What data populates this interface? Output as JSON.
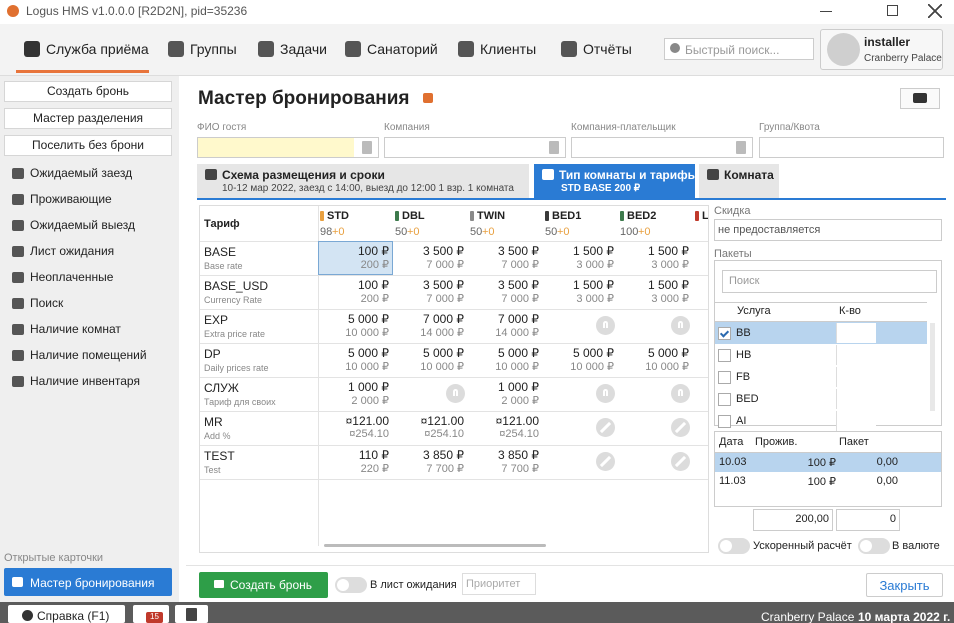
{
  "window": {
    "title": "Logus HMS v1.0.0.0 [R2D2N], pid=35236"
  },
  "nav": {
    "items": [
      "Служба приёма",
      "Группы",
      "Задачи",
      "Санаторий",
      "Клиенты",
      "Отчёты"
    ],
    "active": 0,
    "search_placeholder": "Быстрый поиск...",
    "user": "installer",
    "hotel": "Cranberry Palace"
  },
  "sidebar": {
    "buttons": [
      "Создать бронь",
      "Мастер разделения",
      "Поселить без брони"
    ],
    "links": [
      "Ожидаемый заезд",
      "Проживающие",
      "Ожидаемый выезд",
      "Лист ожидания",
      "Неоплаченные",
      "Поиск",
      "Наличие комнат",
      "Наличие помещений",
      "Наличие инвентаря"
    ],
    "open_cards_label": "Открытые карточки",
    "open_cards": [
      "Мастер бронирования"
    ]
  },
  "main": {
    "title": "Мастер бронирования",
    "fields": [
      "ФИО гостя",
      "Компания",
      "Компания-плательщик",
      "Группа/Квота"
    ],
    "tabs": [
      {
        "title": "Схема размещения и сроки",
        "subtitle": "10-12 мар 2022, заезд с 14:00, выезд до 12:00 1 взр. 1 комната"
      },
      {
        "title": "Тип комнаты и тарифы",
        "subtitle": "STD BASE  200 ₽"
      },
      {
        "title": "Комната"
      }
    ],
    "active_tab": 1,
    "rates": {
      "header": "Тариф",
      "selected": [
        0,
        0
      ],
      "columns": [
        {
          "name": "STD",
          "free": "98",
          "delta": "+0",
          "color": "#e8a040"
        },
        {
          "name": "DBL",
          "free": "50",
          "delta": "+0",
          "color": "#3d7a4c"
        },
        {
          "name": "TWIN",
          "free": "50",
          "delta": "+0",
          "color": "#8a8a8a"
        },
        {
          "name": "BED1",
          "free": "50",
          "delta": "+0",
          "color": "#3a3a3a"
        },
        {
          "name": "BED2",
          "free": "100",
          "delta": "+0",
          "color": "#3d7a4c"
        },
        {
          "name": "L",
          "color": "#c0392b"
        }
      ],
      "rows": [
        {
          "name": "BASE",
          "sub": "Base rate",
          "cells": [
            {
              "price": "100 ₽",
              "total": "200 ₽"
            },
            {
              "price": "3 500 ₽",
              "total": "7 000 ₽"
            },
            {
              "price": "3 500 ₽",
              "total": "7 000 ₽"
            },
            {
              "price": "1 500 ₽",
              "total": "3 000 ₽"
            },
            {
              "price": "1 500 ₽",
              "total": "3 000 ₽"
            }
          ]
        },
        {
          "name": "BASE_USD",
          "sub": "Currency Rate",
          "cells": [
            {
              "price": "100 ₽",
              "total": "200 ₽"
            },
            {
              "price": "3 500 ₽",
              "total": "7 000 ₽"
            },
            {
              "price": "3 500 ₽",
              "total": "7 000 ₽"
            },
            {
              "price": "1 500 ₽",
              "total": "3 000 ₽"
            },
            {
              "price": "1 500 ₽",
              "total": "3 000 ₽"
            }
          ]
        },
        {
          "name": "EXP",
          "sub": "Extra price rate",
          "cells": [
            {
              "price": "5 000 ₽",
              "total": "10 000 ₽"
            },
            {
              "price": "7 000 ₽",
              "total": "14 000 ₽"
            },
            {
              "price": "7 000 ₽",
              "total": "14 000 ₽"
            },
            {
              "state": "unknown"
            },
            {
              "state": "unknown"
            }
          ]
        },
        {
          "name": "DP",
          "sub": "Daily prices rate",
          "cells": [
            {
              "price": "5 000 ₽",
              "total": "10 000 ₽"
            },
            {
              "price": "5 000 ₽",
              "total": "10 000 ₽"
            },
            {
              "price": "5 000 ₽",
              "total": "10 000 ₽"
            },
            {
              "price": "5 000 ₽",
              "total": "10 000 ₽"
            },
            {
              "price": "5 000 ₽",
              "total": "10 000 ₽"
            }
          ]
        },
        {
          "name": "СЛУЖ",
          "sub": "Тариф для своих",
          "cells": [
            {
              "price": "1 000 ₽",
              "total": "2 000 ₽"
            },
            {
              "state": "unknown"
            },
            {
              "price": "1 000 ₽",
              "total": "2 000 ₽"
            },
            {
              "state": "unknown"
            },
            {
              "state": "unknown"
            }
          ]
        },
        {
          "name": "MR",
          "sub": "Add %",
          "cells": [
            {
              "price": "¤121.00",
              "total": "¤254.10"
            },
            {
              "price": "¤121.00",
              "total": "¤254.10"
            },
            {
              "price": "¤121.00",
              "total": "¤254.10"
            },
            {
              "state": "closed"
            },
            {
              "state": "closed"
            }
          ]
        },
        {
          "name": "TEST",
          "sub": "Test",
          "cells": [
            {
              "price": "110 ₽",
              "total": "220 ₽"
            },
            {
              "price": "3 850 ₽",
              "total": "7 700 ₽"
            },
            {
              "price": "3 850 ₽",
              "total": "7 700 ₽"
            },
            {
              "state": "closed"
            },
            {
              "state": "closed"
            }
          ]
        }
      ]
    },
    "discount": {
      "label": "Скидка",
      "value": "не предоставляется"
    },
    "packages": {
      "label": "Пакеты",
      "search_placeholder": "Поиск",
      "headers": [
        "Услуга",
        "К-во"
      ],
      "items": [
        {
          "name": "BB",
          "checked": true
        },
        {
          "name": "HB",
          "checked": false
        },
        {
          "name": "FB",
          "checked": false
        },
        {
          "name": "BED",
          "checked": false
        },
        {
          "name": "AI",
          "checked": false
        }
      ]
    },
    "days": {
      "headers": [
        "Дата",
        "Прожив.",
        "Пакет"
      ],
      "rows": [
        [
          "10.03",
          "100 ₽",
          "0,00"
        ],
        [
          "11.03",
          "100 ₽",
          "0,00"
        ]
      ],
      "selected": 0,
      "totals": [
        "200,00",
        "0"
      ]
    },
    "toggles": [
      "Ускоренный расчёт",
      "В валюте"
    ],
    "footer": {
      "create": "Создать бронь",
      "waitlist": "В лист ожидания",
      "priority": "Приоритет",
      "close": "Закрыть"
    }
  },
  "status": {
    "help": "Справка (F1)",
    "badge": "15",
    "hotel": "Cranberry Palace",
    "date": "10 марта 2022 г."
  }
}
